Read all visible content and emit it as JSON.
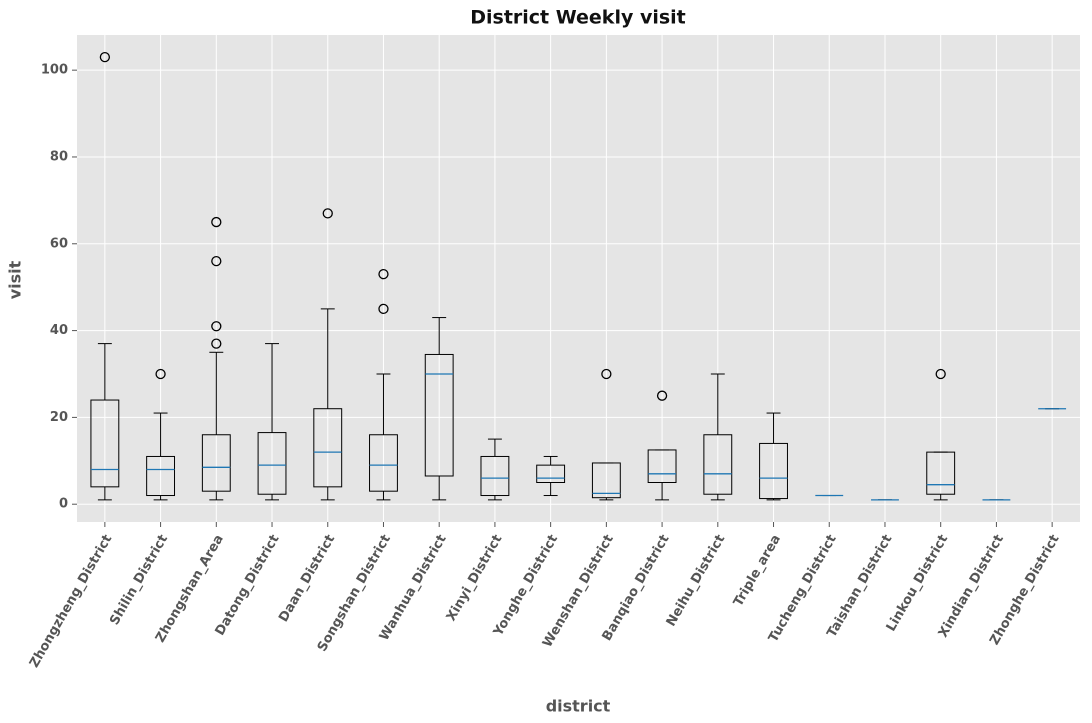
{
  "chart_data": {
    "type": "boxplot",
    "title": "District Weekly visit",
    "x_label": "district",
    "y_label": "visit",
    "categories": [
      "Zhongzheng_District",
      "Shilin_District",
      "Zhongshan_Area",
      "Datong_District",
      "Daan_District",
      "Songshan_District",
      "Wanhua_District",
      "Xinyi_District",
      "Yonghe_District",
      "Wenshan_District",
      "Banqiao_District",
      "Neihu_District",
      "Triple_area",
      "Tucheng_District",
      "Taishan_District",
      "Linkou_District",
      "Xindian_District",
      "Zhonghe_District"
    ],
    "boxes": [
      {
        "min": 1,
        "q1": 4,
        "median": 8,
        "q3": 24,
        "max": 37,
        "outliers": [
          103
        ]
      },
      {
        "min": 1,
        "q1": 2,
        "median": 8,
        "q3": 11,
        "max": 21,
        "outliers": [
          30
        ]
      },
      {
        "min": 1,
        "q1": 3,
        "median": 8.5,
        "q3": 16,
        "max": 35,
        "outliers": [
          37,
          41,
          56,
          65
        ]
      },
      {
        "min": 1,
        "q1": 2.3,
        "median": 9,
        "q3": 16.5,
        "max": 37,
        "outliers": []
      },
      {
        "min": 1,
        "q1": 4,
        "median": 12,
        "q3": 22,
        "max": 45,
        "outliers": [
          67
        ]
      },
      {
        "min": 1,
        "q1": 3,
        "median": 9,
        "q3": 16,
        "max": 30,
        "outliers": [
          45,
          53
        ]
      },
      {
        "min": 1,
        "q1": 6.5,
        "median": 30,
        "q3": 34.5,
        "max": 43,
        "outliers": []
      },
      {
        "min": 1,
        "q1": 2,
        "median": 6,
        "q3": 11,
        "max": 15,
        "outliers": []
      },
      {
        "min": 2,
        "q1": 5,
        "median": 6,
        "q3": 9,
        "max": 11,
        "outliers": []
      },
      {
        "min": 1,
        "q1": 1.5,
        "median": 2.5,
        "q3": 9.5,
        "max": 9.5,
        "outliers": [
          30
        ]
      },
      {
        "min": 1,
        "q1": 5,
        "median": 7,
        "q3": 12.5,
        "max": 12.5,
        "outliers": [
          25
        ]
      },
      {
        "min": 1,
        "q1": 2.3,
        "median": 7,
        "q3": 16,
        "max": 30,
        "outliers": []
      },
      {
        "min": 1,
        "q1": 1.3,
        "median": 6,
        "q3": 14,
        "max": 21,
        "outliers": []
      },
      {
        "min": 2,
        "q1": 2,
        "median": 2,
        "q3": 2,
        "max": 2,
        "outliers": []
      },
      {
        "min": 1,
        "q1": 1,
        "median": 1,
        "q3": 1,
        "max": 1,
        "outliers": []
      },
      {
        "min": 1,
        "q1": 2.3,
        "median": 4.5,
        "q3": 12,
        "max": 12,
        "outliers": [
          30
        ]
      },
      {
        "min": 1,
        "q1": 1,
        "median": 1,
        "q3": 1,
        "max": 1,
        "outliers": []
      },
      {
        "min": 22,
        "q1": 22,
        "median": 22,
        "q3": 22,
        "max": 22,
        "outliers": []
      }
    ],
    "box_color": "#000000",
    "median_color": "#1f77b4",
    "ylim": [
      -4.1,
      108.1
    ],
    "yticks": [
      0,
      20,
      40,
      60,
      80,
      100
    ],
    "grid": true
  }
}
